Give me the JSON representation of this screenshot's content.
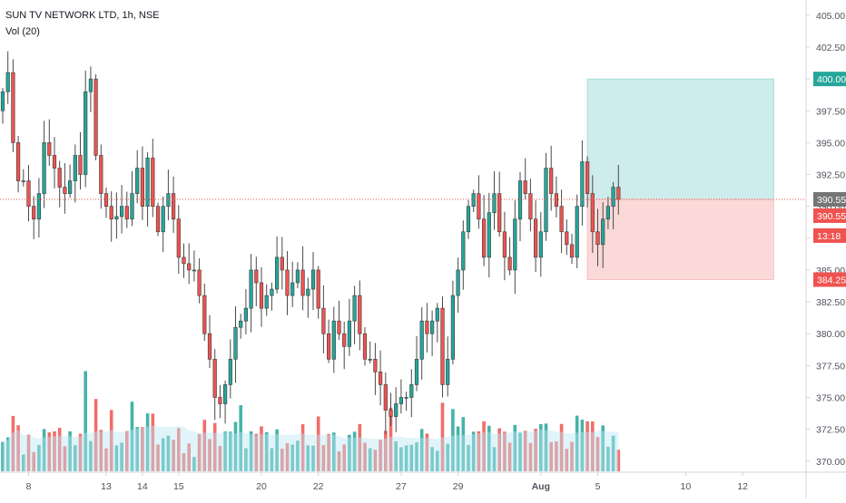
{
  "header": {
    "symbol_line": "SUN TV NETWORK LTD, 1h, NSE",
    "indicator_line": "Vol (20)"
  },
  "colors": {
    "up": "#26a69a",
    "down": "#ef5350",
    "volume_up": "#26a69a",
    "volume_down": "#ef5350",
    "volume_ma": "#bde7f3",
    "target_zone": "#cdeceb",
    "stop_zone": "#fcd9d9",
    "price_line": "#ef5350",
    "current_price_badge": "#757575",
    "target_badge": "#26a69a",
    "stop_badge": "#ef5350",
    "axis_text": "#50535e",
    "axis_line": "#d1d4dc"
  },
  "price_axis": {
    "ticks": [
      "405.00",
      "402.50",
      "400.00",
      "397.50",
      "395.00",
      "392.50",
      "390.00",
      "387.50",
      "385.00",
      "382.50",
      "380.00",
      "377.50",
      "375.00",
      "372.50",
      "370.00"
    ],
    "range": [
      369.2,
      406.2
    ],
    "badges": {
      "target": "400.00",
      "current_price": "390.55",
      "last_close": "390.55",
      "countdown": "13:18",
      "stop": "384.25"
    }
  },
  "time_axis": {
    "ticks": [
      {
        "label": "8",
        "index": 5
      },
      {
        "label": "13",
        "index": 20
      },
      {
        "label": "14",
        "index": 27
      },
      {
        "label": "15",
        "index": 34
      },
      {
        "label": "20",
        "index": 50
      },
      {
        "label": "22",
        "index": 61
      },
      {
        "label": "27",
        "index": 77
      },
      {
        "label": "29",
        "index": 88
      },
      {
        "label": "Aug",
        "index": 104
      },
      {
        "label": "5",
        "index": 115
      },
      {
        "label": "10",
        "index": 132
      },
      {
        "label": "12",
        "index": 143
      }
    ]
  },
  "position_tool": {
    "entry": 390.55,
    "target": 400.0,
    "stop": 384.25,
    "start_index": 113,
    "end_index": 149
  },
  "chart_data": {
    "type": "candlestick",
    "title": "SUN TV NETWORK LTD, 1h, NSE",
    "ylim": [
      369.2,
      406.2
    ],
    "x_tick_labels": [
      "8",
      "13",
      "14",
      "15",
      "20",
      "22",
      "27",
      "29",
      "Aug",
      "5",
      "10",
      "12"
    ],
    "y_tick_labels": [
      "405.00",
      "402.50",
      "400.00",
      "397.50",
      "395.00",
      "392.50",
      "390.00",
      "387.50",
      "385.00",
      "382.50",
      "380.00",
      "377.50",
      "375.00",
      "372.50",
      "370.00"
    ],
    "closes": [
      399,
      400.5,
      395,
      392,
      392,
      390,
      389,
      391,
      395,
      394,
      393,
      391.5,
      391,
      392,
      394,
      392.5,
      399,
      400,
      394,
      391,
      390,
      389,
      389.2,
      390,
      389,
      391,
      393,
      390,
      393.8,
      390,
      388,
      390,
      391,
      389,
      386,
      385.5,
      385,
      385,
      383,
      380,
      378,
      375,
      374.5,
      376,
      378,
      380.5,
      381,
      382,
      385,
      384,
      382,
      383,
      383.5,
      386,
      385,
      383,
      384,
      385,
      383,
      383.5,
      385,
      382,
      380,
      378,
      381,
      380,
      379,
      381,
      383,
      380,
      378,
      378,
      377,
      376,
      374,
      373.5,
      374.5,
      375,
      375,
      376,
      378,
      381,
      380,
      381,
      382,
      376,
      378,
      383,
      385,
      388,
      390,
      391,
      389,
      386,
      389.5,
      391,
      388,
      386,
      385,
      389,
      392,
      391,
      389,
      386,
      388,
      393,
      391,
      390,
      388,
      387,
      386,
      390,
      393.5,
      391,
      388,
      387,
      389,
      390,
      391.5,
      390.55
    ],
    "volume": {
      "name": "Vol (20)",
      "ma_period": 20
    }
  }
}
